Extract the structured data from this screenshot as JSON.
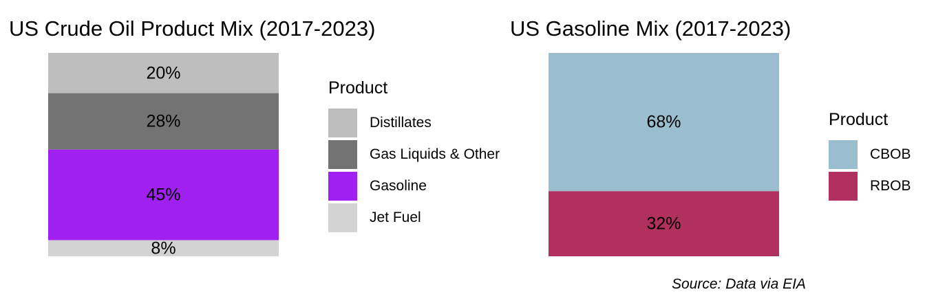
{
  "chart_data": [
    {
      "type": "bar",
      "stacked": true,
      "title": "US Crude Oil Product Mix (2017-2023)",
      "legend_title": "Product",
      "legend_position": "right",
      "grid": false,
      "ylim": [
        0,
        101
      ],
      "stack_order_top_to_bottom": [
        "Distillates",
        "Gas Liquids & Other",
        "Gasoline",
        "Jet Fuel"
      ],
      "series": [
        {
          "name": "Distillates",
          "value": 20,
          "label": "20%",
          "color": "#bebebe"
        },
        {
          "name": "Gas Liquids & Other",
          "value": 28,
          "label": "28%",
          "color": "#737373"
        },
        {
          "name": "Gasoline",
          "value": 45,
          "label": "45%",
          "color": "#a020f0"
        },
        {
          "name": "Jet Fuel",
          "value": 8,
          "label": "8%",
          "color": "#d3d3d3"
        }
      ]
    },
    {
      "type": "bar",
      "stacked": true,
      "title": "US Gasoline Mix (2017-2023)",
      "legend_title": "Product",
      "legend_position": "right",
      "grid": false,
      "ylim": [
        0,
        100
      ],
      "stack_order_top_to_bottom": [
        "CBOB",
        "RBOB"
      ],
      "series": [
        {
          "name": "CBOB",
          "value": 68,
          "label": "68%",
          "color": "#9abecd"
        },
        {
          "name": "RBOB",
          "value": 32,
          "label": "32%",
          "color": "#b03060"
        }
      ]
    }
  ],
  "source": "Source: Data via EIA"
}
